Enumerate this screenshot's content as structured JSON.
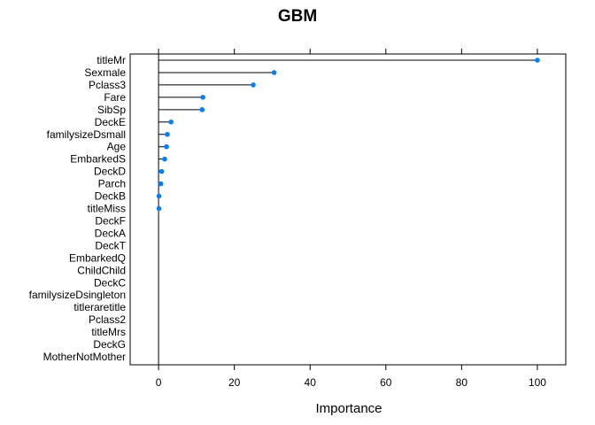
{
  "chart_data": {
    "type": "dot",
    "title": "GBM",
    "xlabel": "Importance",
    "ylabel": "",
    "xlim": [
      -7.5,
      107.5
    ],
    "xticks": [
      0,
      20,
      40,
      60,
      80,
      100
    ],
    "grid": false,
    "point_color": "#0080ff",
    "categories": [
      "titleMr",
      "Sexmale",
      "Pclass3",
      "Fare",
      "SibSp",
      "DeckE",
      "familysizeDsmall",
      "Age",
      "EmbarkedS",
      "DeckD",
      "Parch",
      "DeckB",
      "titleMiss",
      "DeckF",
      "DeckA",
      "DeckT",
      "EmbarkedQ",
      "ChildChild",
      "DeckC",
      "familysizeDsingleton",
      "titleraretitle",
      "Pclass2",
      "titleMrs",
      "DeckG",
      "MotherNotMother"
    ],
    "values": [
      100,
      30.5,
      25,
      11.7,
      11.5,
      3.3,
      2.3,
      2.1,
      1.6,
      0.8,
      0.6,
      0.1,
      0.1,
      null,
      null,
      null,
      null,
      null,
      null,
      null,
      null,
      null,
      null,
      null,
      null
    ]
  }
}
